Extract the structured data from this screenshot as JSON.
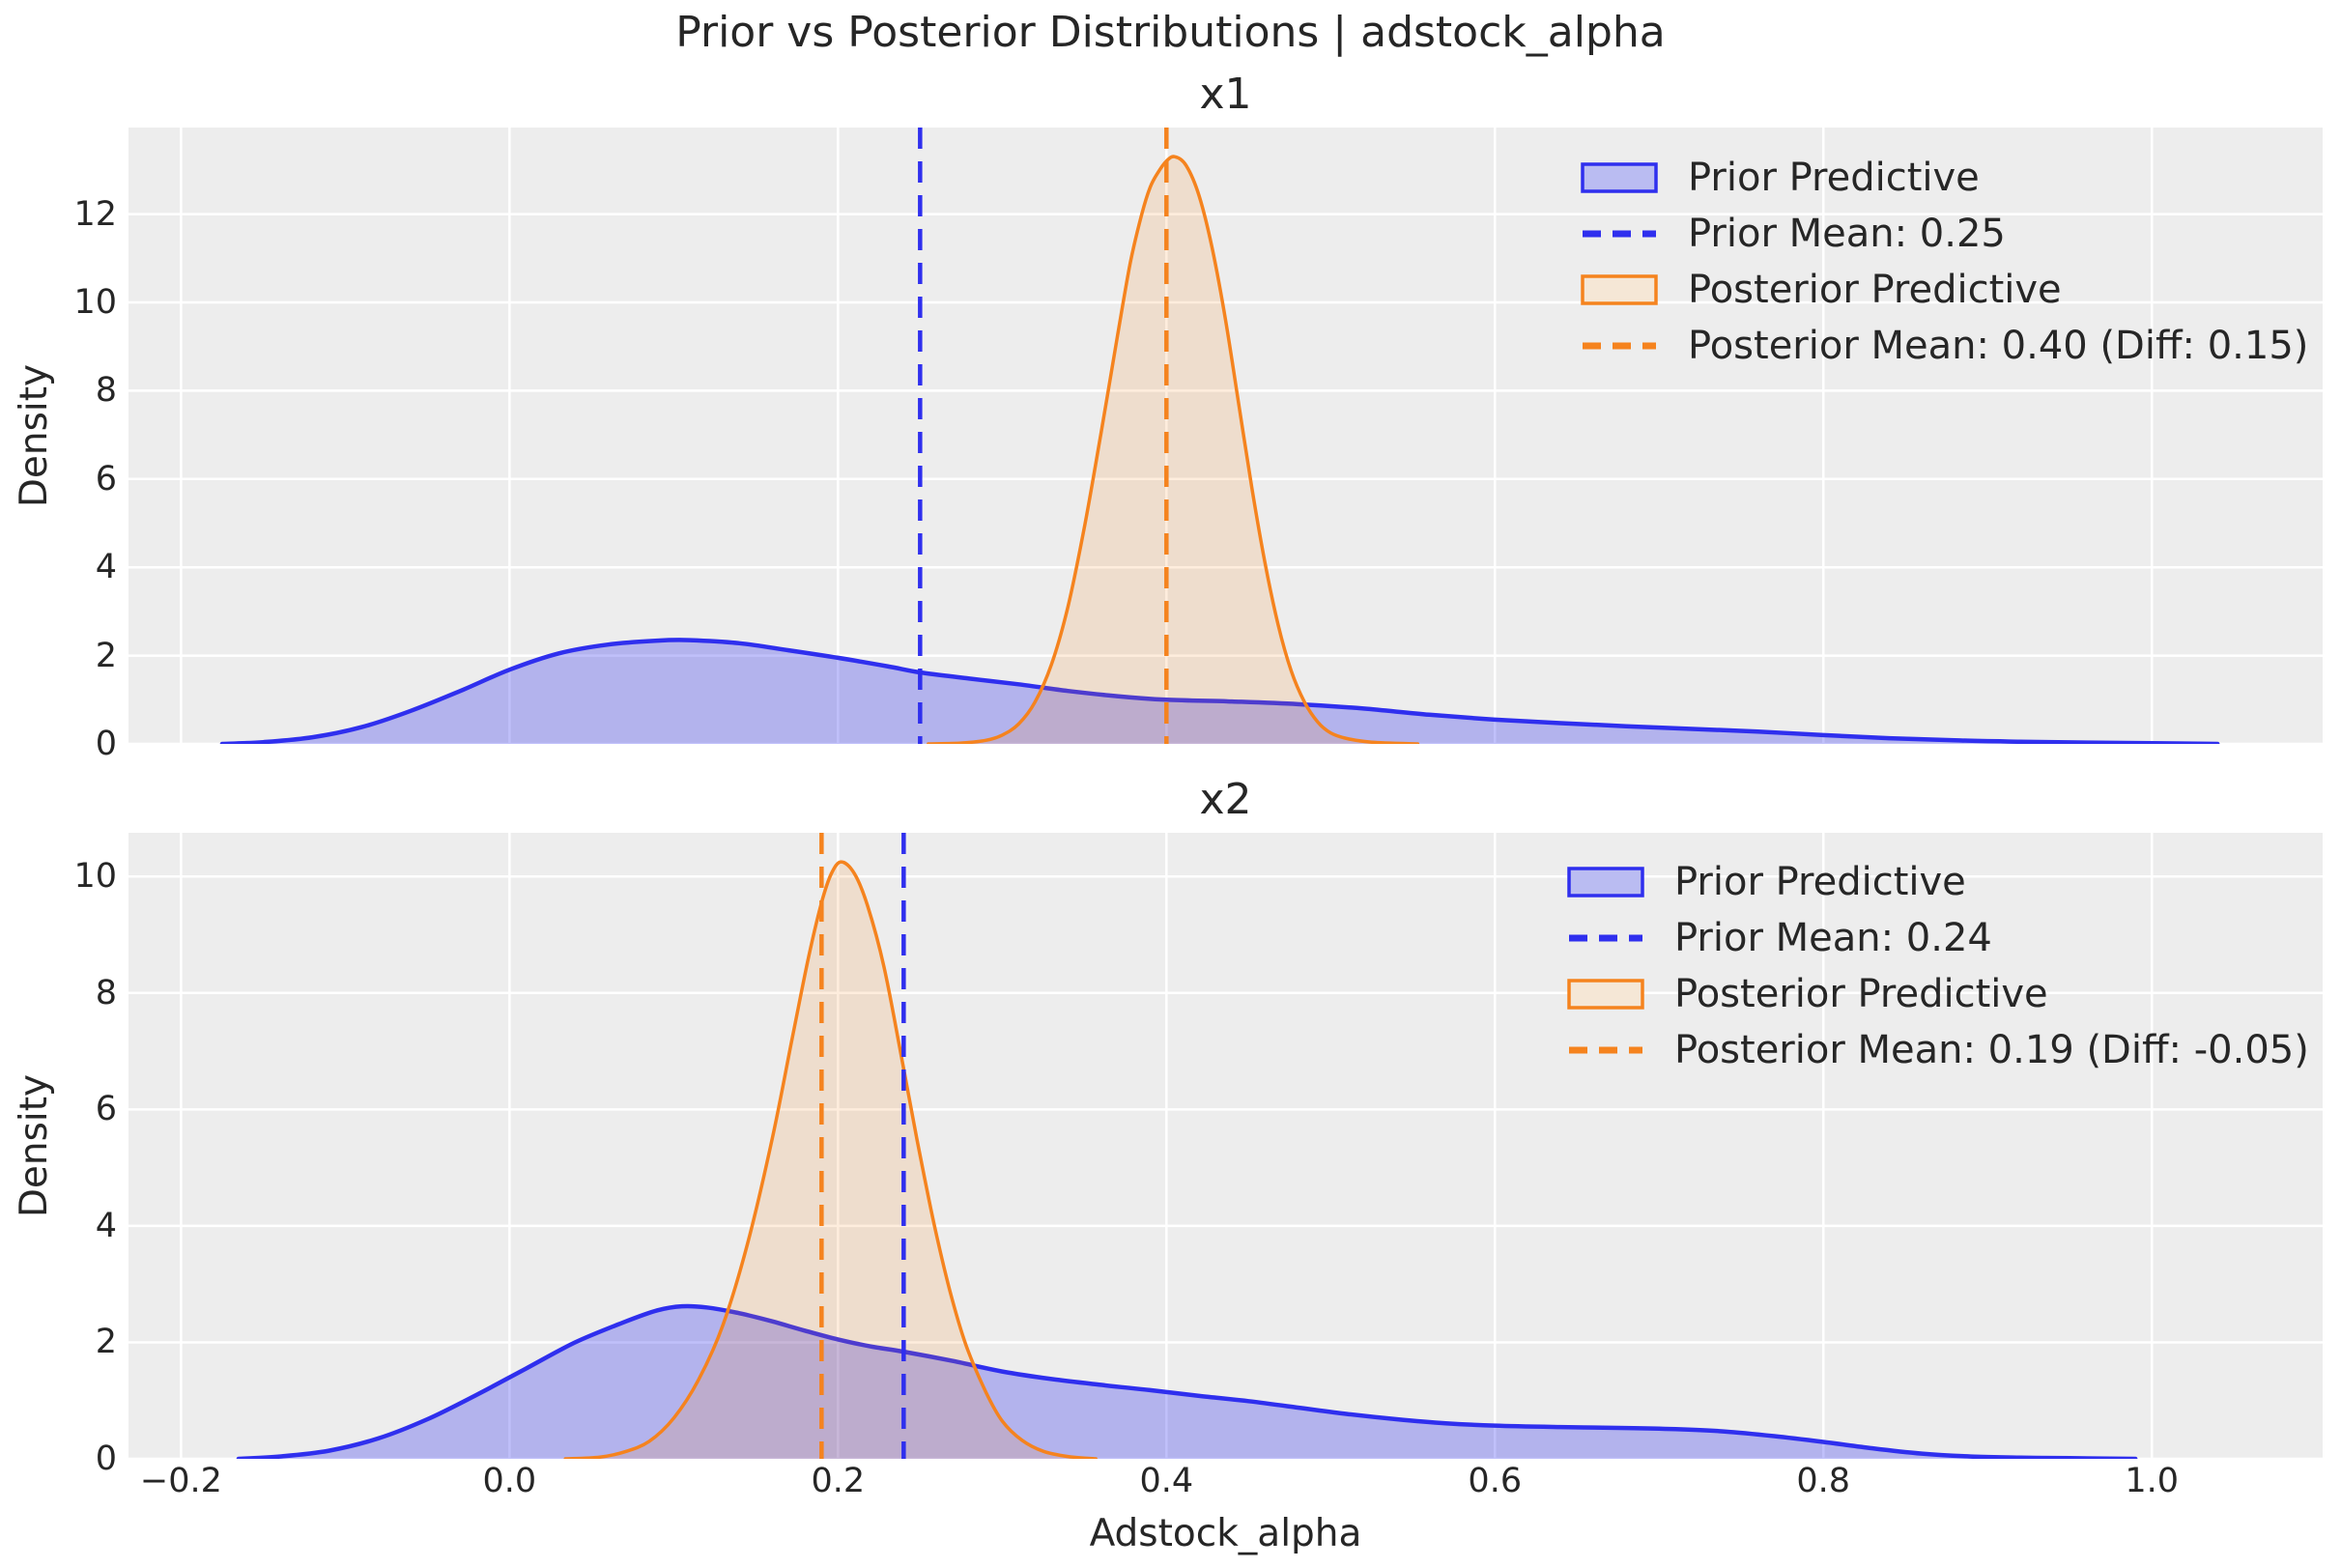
{
  "figure": {
    "suptitle": "Prior vs Posterior Distributions | adstock_alpha",
    "background": "#ffffff",
    "panel_background": "#ededed",
    "grid_color": "#ffffff",
    "text_color": "#262626",
    "colors": {
      "prior": {
        "line": "#2f2fee",
        "fill": "rgba(47,47,238,0.30)",
        "patch": "#babcf2"
      },
      "posterior": {
        "line": "#f5831e",
        "fill": "rgba(245,131,30,0.15)",
        "patch": "#f5e7d6"
      }
    }
  },
  "chart_data": [
    {
      "type": "area",
      "title": "x1",
      "xlabel": "Adstock_alpha",
      "ylabel": "Density",
      "x_range": [
        -0.232,
        1.104
      ],
      "y_range": [
        0,
        13.96
      ],
      "x_ticks": [
        -0.2,
        0.0,
        0.2,
        0.4,
        0.6,
        0.8,
        1.0
      ],
      "x_tick_labels": [
        "−0.2",
        "0.0",
        "0.2",
        "0.4",
        "0.6",
        "0.8",
        "1.0"
      ],
      "show_x_tick_labels": false,
      "y_ticks": [
        0,
        2,
        4,
        6,
        8,
        10,
        12
      ],
      "y_tick_labels": [
        "0",
        "2",
        "4",
        "6",
        "8",
        "10",
        "12"
      ],
      "grid": true,
      "legend_position": "upper right",
      "series": [
        {
          "name": "Prior Predictive",
          "role": "prior",
          "points": [
            [
              -0.175,
              0
            ],
            [
              -0.15,
              0.04
            ],
            [
              -0.12,
              0.15
            ],
            [
              -0.09,
              0.38
            ],
            [
              -0.06,
              0.75
            ],
            [
              -0.03,
              1.2
            ],
            [
              0.0,
              1.68
            ],
            [
              0.03,
              2.05
            ],
            [
              0.06,
              2.25
            ],
            [
              0.09,
              2.34
            ],
            [
              0.11,
              2.35
            ],
            [
              0.14,
              2.28
            ],
            [
              0.17,
              2.12
            ],
            [
              0.2,
              1.95
            ],
            [
              0.23,
              1.76
            ],
            [
              0.25,
              1.62
            ],
            [
              0.28,
              1.48
            ],
            [
              0.31,
              1.35
            ],
            [
              0.34,
              1.2
            ],
            [
              0.37,
              1.08
            ],
            [
              0.4,
              1.0
            ],
            [
              0.44,
              0.96
            ],
            [
              0.48,
              0.9
            ],
            [
              0.52,
              0.8
            ],
            [
              0.56,
              0.66
            ],
            [
              0.6,
              0.55
            ],
            [
              0.64,
              0.47
            ],
            [
              0.68,
              0.4
            ],
            [
              0.72,
              0.34
            ],
            [
              0.76,
              0.28
            ],
            [
              0.8,
              0.2
            ],
            [
              0.84,
              0.13
            ],
            [
              0.88,
              0.08
            ],
            [
              0.92,
              0.05
            ],
            [
              0.96,
              0.03
            ],
            [
              1.0,
              0.015
            ],
            [
              1.04,
              0
            ]
          ]
        },
        {
          "name": "Posterior Predictive",
          "role": "posterior",
          "points": [
            [
              0.255,
              0
            ],
            [
              0.275,
              0.02
            ],
            [
              0.29,
              0.08
            ],
            [
              0.3,
              0.2
            ],
            [
              0.31,
              0.45
            ],
            [
              0.32,
              0.95
            ],
            [
              0.33,
              1.8
            ],
            [
              0.34,
              3.1
            ],
            [
              0.35,
              4.9
            ],
            [
              0.36,
              7.0
            ],
            [
              0.37,
              9.2
            ],
            [
              0.378,
              10.9
            ],
            [
              0.385,
              12.0
            ],
            [
              0.39,
              12.6
            ],
            [
              0.395,
              12.95
            ],
            [
              0.4,
              13.2
            ],
            [
              0.405,
              13.3
            ],
            [
              0.412,
              13.1
            ],
            [
              0.42,
              12.4
            ],
            [
              0.428,
              11.2
            ],
            [
              0.436,
              9.6
            ],
            [
              0.444,
              7.7
            ],
            [
              0.452,
              5.8
            ],
            [
              0.46,
              4.1
            ],
            [
              0.468,
              2.7
            ],
            [
              0.476,
              1.65
            ],
            [
              0.484,
              0.95
            ],
            [
              0.492,
              0.5
            ],
            [
              0.5,
              0.25
            ],
            [
              0.51,
              0.12
            ],
            [
              0.525,
              0.04
            ],
            [
              0.553,
              0
            ]
          ]
        }
      ],
      "vlines": [
        {
          "label": "Prior Mean: 0.25",
          "x": 0.25,
          "role": "prior"
        },
        {
          "label": "Posterior Mean: 0.40 (Diff: 0.15)",
          "x": 0.4,
          "role": "posterior"
        }
      ],
      "legend": [
        {
          "swatch": "patch",
          "role": "prior",
          "label": "Prior Predictive"
        },
        {
          "swatch": "dash",
          "role": "prior",
          "label": "Prior Mean: 0.25"
        },
        {
          "swatch": "patch",
          "role": "posterior",
          "label": "Posterior Predictive"
        },
        {
          "swatch": "dash",
          "role": "posterior",
          "label": "Posterior Mean: 0.40 (Diff: 0.15)"
        }
      ]
    },
    {
      "type": "area",
      "title": "x2",
      "xlabel": "Adstock_alpha",
      "ylabel": "Density",
      "x_range": [
        -0.232,
        1.104
      ],
      "y_range": [
        0,
        10.75
      ],
      "x_ticks": [
        -0.2,
        0.0,
        0.2,
        0.4,
        0.6,
        0.8,
        1.0
      ],
      "x_tick_labels": [
        "−0.2",
        "0.0",
        "0.2",
        "0.4",
        "0.6",
        "0.8",
        "1.0"
      ],
      "show_x_tick_labels": true,
      "y_ticks": [
        0,
        2,
        4,
        6,
        8,
        10
      ],
      "y_tick_labels": [
        "0",
        "2",
        "4",
        "6",
        "8",
        "10"
      ],
      "grid": true,
      "legend_position": "upper right",
      "series": [
        {
          "name": "Prior Predictive",
          "role": "prior",
          "points": [
            [
              -0.165,
              0
            ],
            [
              -0.14,
              0.04
            ],
            [
              -0.11,
              0.14
            ],
            [
              -0.08,
              0.35
            ],
            [
              -0.05,
              0.68
            ],
            [
              -0.02,
              1.1
            ],
            [
              0.01,
              1.55
            ],
            [
              0.04,
              2.0
            ],
            [
              0.07,
              2.35
            ],
            [
              0.09,
              2.55
            ],
            [
              0.105,
              2.62
            ],
            [
              0.12,
              2.6
            ],
            [
              0.14,
              2.5
            ],
            [
              0.16,
              2.36
            ],
            [
              0.18,
              2.2
            ],
            [
              0.2,
              2.05
            ],
            [
              0.22,
              1.93
            ],
            [
              0.24,
              1.84
            ],
            [
              0.27,
              1.68
            ],
            [
              0.3,
              1.5
            ],
            [
              0.33,
              1.37
            ],
            [
              0.36,
              1.27
            ],
            [
              0.39,
              1.18
            ],
            [
              0.42,
              1.08
            ],
            [
              0.45,
              0.99
            ],
            [
              0.48,
              0.88
            ],
            [
              0.51,
              0.77
            ],
            [
              0.54,
              0.68
            ],
            [
              0.57,
              0.61
            ],
            [
              0.6,
              0.57
            ],
            [
              0.64,
              0.545
            ],
            [
              0.68,
              0.53
            ],
            [
              0.71,
              0.51
            ],
            [
              0.74,
              0.47
            ],
            [
              0.77,
              0.39
            ],
            [
              0.8,
              0.29
            ],
            [
              0.83,
              0.18
            ],
            [
              0.86,
              0.09
            ],
            [
              0.89,
              0.04
            ],
            [
              0.92,
              0.02
            ],
            [
              0.95,
              0.012
            ],
            [
              0.99,
              0
            ]
          ]
        },
        {
          "name": "Posterior Predictive",
          "role": "posterior",
          "points": [
            [
              0.034,
              0
            ],
            [
              0.055,
              0.03
            ],
            [
              0.07,
              0.12
            ],
            [
              0.085,
              0.3
            ],
            [
              0.1,
              0.7
            ],
            [
              0.115,
              1.35
            ],
            [
              0.13,
              2.3
            ],
            [
              0.145,
              3.7
            ],
            [
              0.16,
              5.5
            ],
            [
              0.172,
              7.2
            ],
            [
              0.182,
              8.6
            ],
            [
              0.19,
              9.55
            ],
            [
              0.196,
              10.05
            ],
            [
              0.202,
              10.25
            ],
            [
              0.21,
              10.05
            ],
            [
              0.218,
              9.5
            ],
            [
              0.228,
              8.45
            ],
            [
              0.238,
              7.0
            ],
            [
              0.248,
              5.5
            ],
            [
              0.258,
              4.1
            ],
            [
              0.268,
              2.9
            ],
            [
              0.278,
              1.95
            ],
            [
              0.29,
              1.15
            ],
            [
              0.3,
              0.65
            ],
            [
              0.312,
              0.32
            ],
            [
              0.325,
              0.13
            ],
            [
              0.34,
              0.04
            ],
            [
              0.357,
              0
            ]
          ]
        }
      ],
      "vlines": [
        {
          "label": "Prior Mean: 0.24",
          "x": 0.24,
          "role": "prior"
        },
        {
          "label": "Posterior Mean: 0.19 (Diff: -0.05)",
          "x": 0.19,
          "role": "posterior"
        }
      ],
      "legend": [
        {
          "swatch": "patch",
          "role": "prior",
          "label": "Prior Predictive"
        },
        {
          "swatch": "dash",
          "role": "prior",
          "label": "Prior Mean: 0.24"
        },
        {
          "swatch": "patch",
          "role": "posterior",
          "label": "Posterior Predictive"
        },
        {
          "swatch": "dash",
          "role": "posterior",
          "label": "Posterior Mean: 0.19 (Diff: -0.05)"
        }
      ]
    }
  ]
}
